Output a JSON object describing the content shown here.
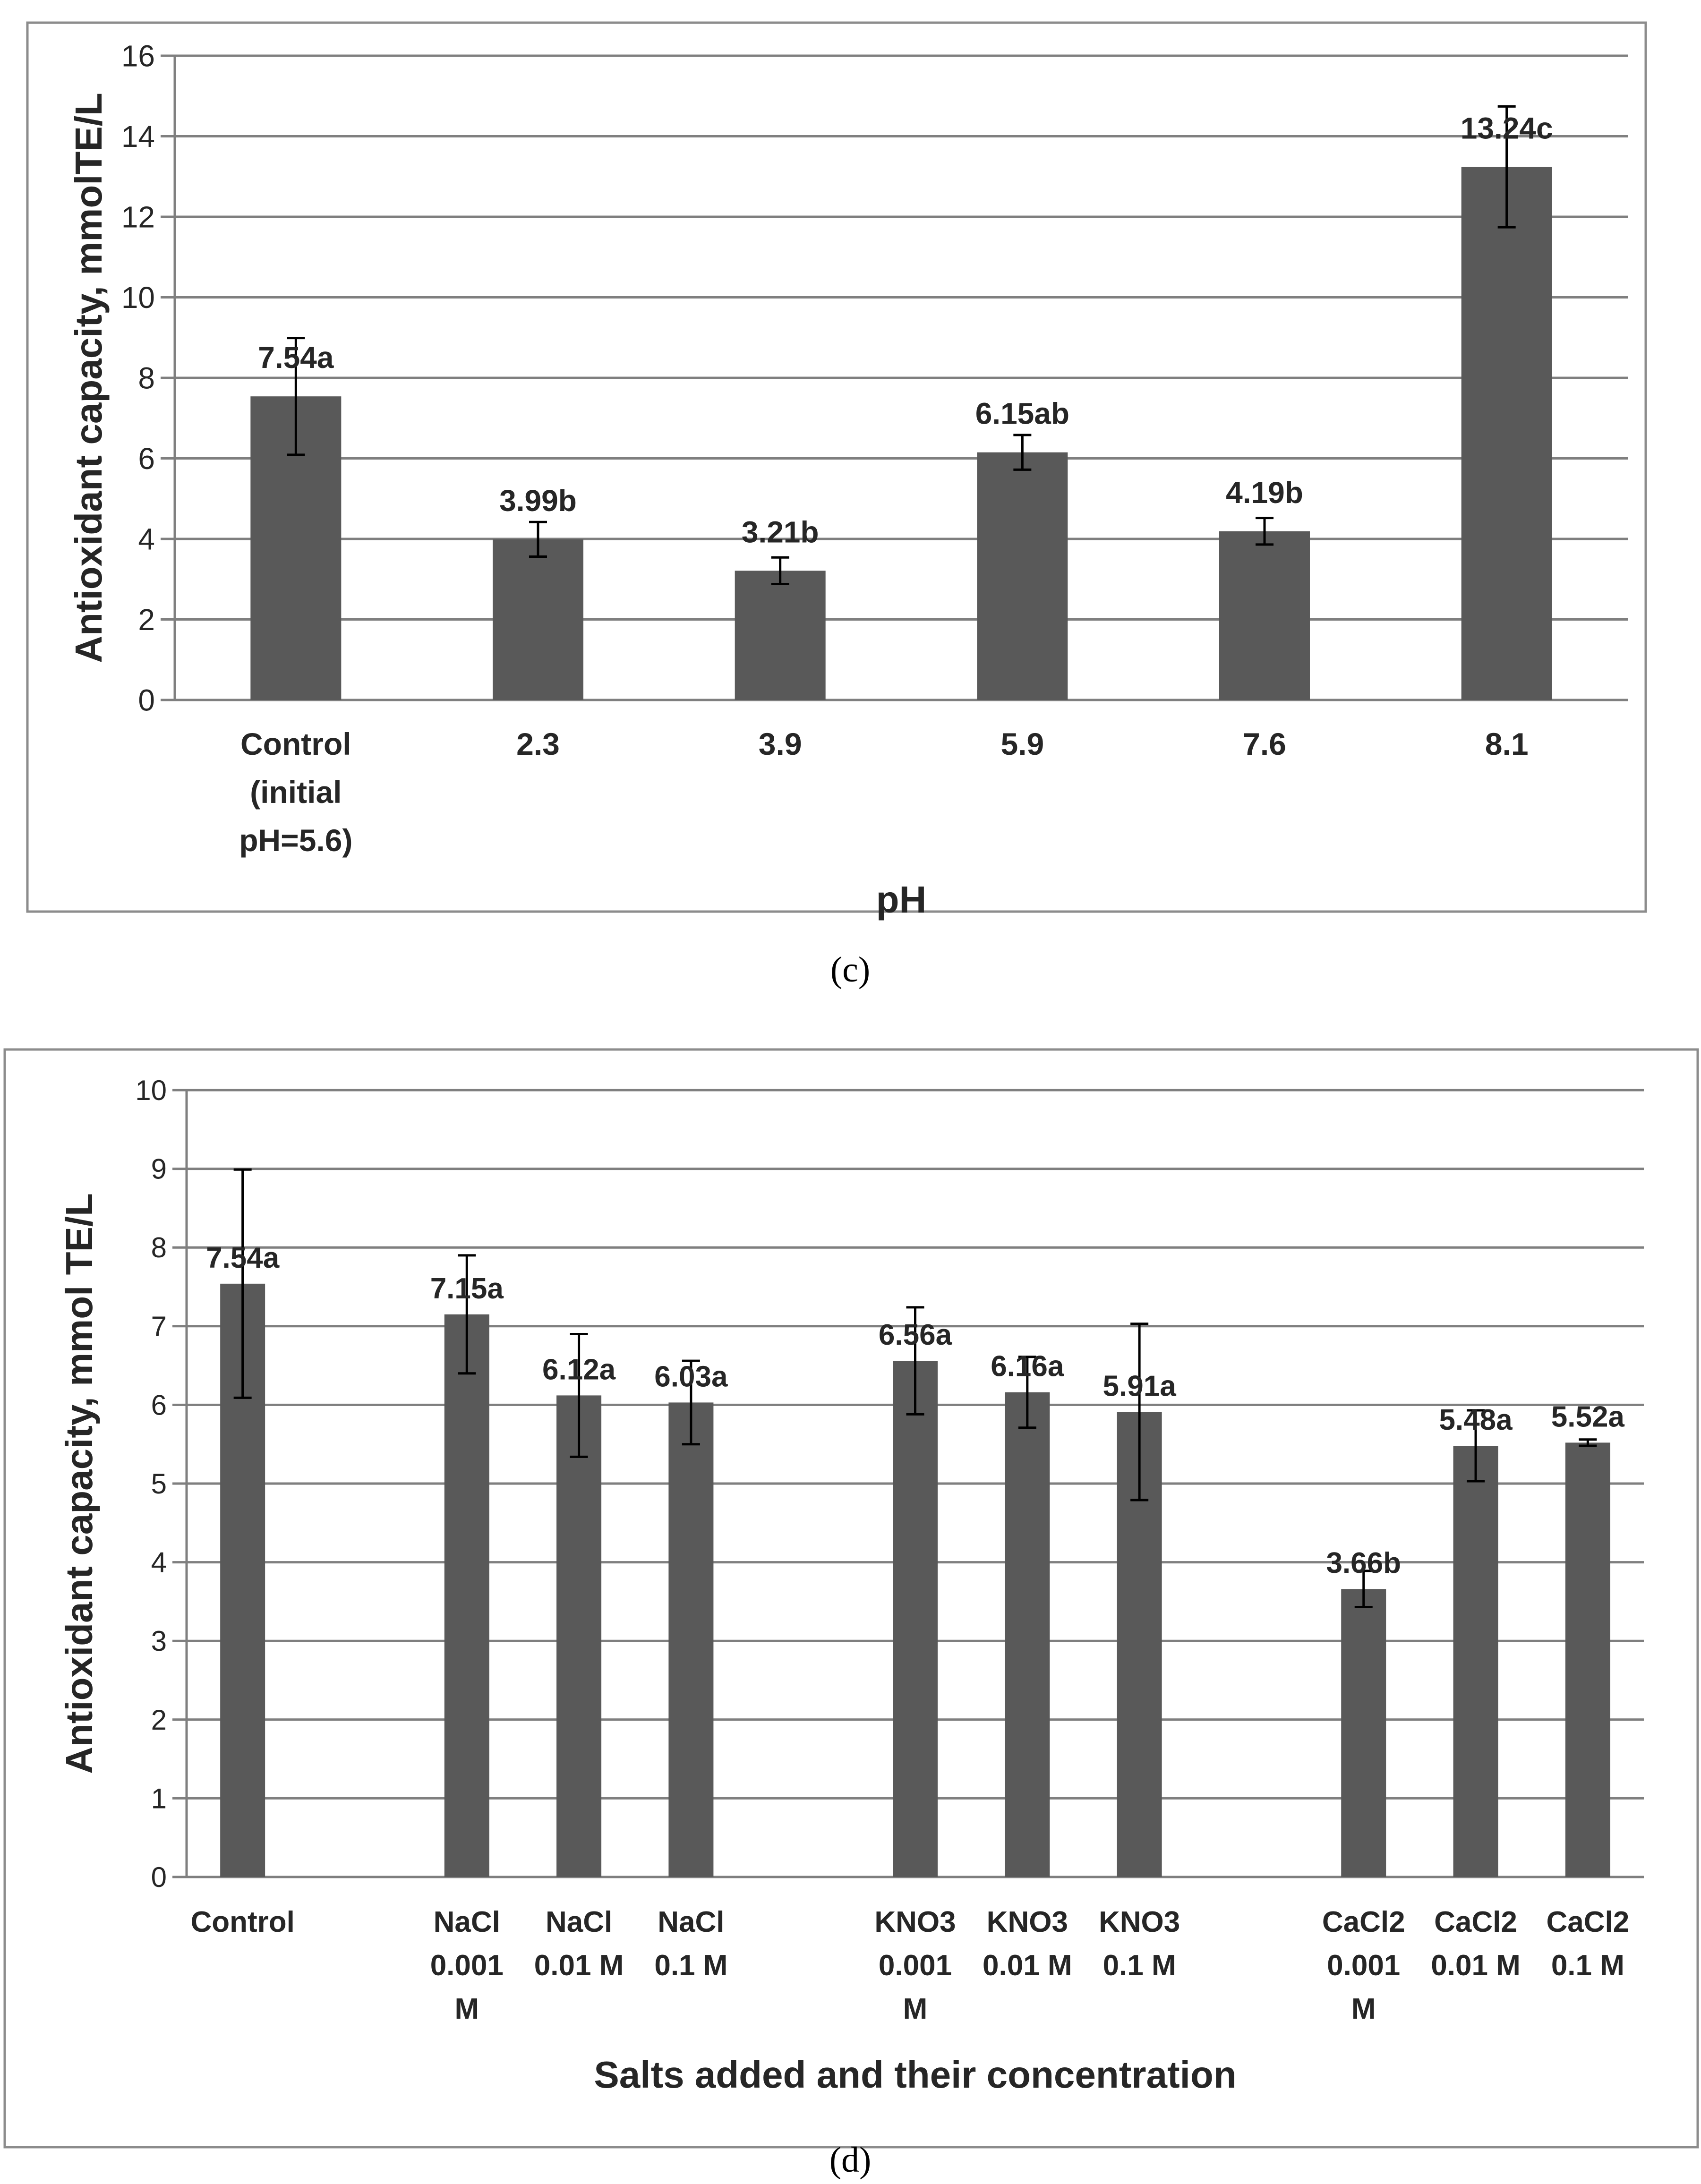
{
  "colors": {
    "bar": "#595959",
    "grid": "#7f7f7f",
    "axis": "#7f7f7f",
    "text": "#262626",
    "frame": "#8c8c8c",
    "errorbar": "#000000"
  },
  "chart_data": [
    {
      "type": "bar",
      "panel": "(c)",
      "panel_letter": "c",
      "title": "",
      "xlabel": "pH",
      "ylabel": "Antioxidant capacity, mmolTE/L",
      "ylim": [
        0,
        16
      ],
      "ytick_step": 2,
      "yticks": [
        "0",
        "2",
        "4",
        "6",
        "8",
        "10",
        "12",
        "14",
        "16"
      ],
      "grid": true,
      "legend": "none",
      "categories": [
        "Control (initial pH=5.6)",
        "2.3",
        "3.9",
        "5.9",
        "7.6",
        "8.1"
      ],
      "category_lines": [
        [
          "Control",
          "(initial",
          "pH=5.6)"
        ],
        [
          "2.3"
        ],
        [
          "3.9"
        ],
        [
          "5.9"
        ],
        [
          "7.6"
        ],
        [
          "8.1"
        ]
      ],
      "values": [
        7.54,
        3.99,
        3.21,
        6.15,
        4.19,
        13.24
      ],
      "error": [
        1.45,
        0.43,
        0.33,
        0.43,
        0.33,
        1.5
      ],
      "data_labels": [
        "7.54a",
        "3.99b",
        "3.21b",
        "6.15ab",
        "4.19b",
        "13.24c"
      ]
    },
    {
      "type": "bar",
      "panel": "(d)",
      "panel_letter": "d",
      "title": "",
      "xlabel": "Salts added and their concentration",
      "ylabel": "Antioxidant capacity, mmol TE/L",
      "ylim": [
        0,
        10
      ],
      "ytick_step": 1,
      "yticks": [
        "0",
        "1",
        "2",
        "3",
        "4",
        "5",
        "6",
        "7",
        "8",
        "9",
        "10"
      ],
      "grid": true,
      "legend": "none",
      "categories": [
        "Control",
        "",
        "NaCl 0.001 M",
        "NaCl 0.01 M",
        "NaCl 0.1 M",
        "",
        "KNO3 0.001 M",
        "KNO3 0.01 M",
        "KNO3 0.1 M",
        "",
        "CaCl2 0.001 M",
        "CaCl2 0.01 M",
        "CaCl2 0.1 M"
      ],
      "category_lines": [
        [
          "Control"
        ],
        [],
        [
          "NaCl",
          "0.001",
          "M"
        ],
        [
          "NaCl",
          "0.01 M"
        ],
        [
          "NaCl",
          "0.1 M"
        ],
        [],
        [
          "KNO3",
          "0.001",
          "M"
        ],
        [
          "KNO3",
          "0.01 M"
        ],
        [
          "KNO3",
          "0.1 M"
        ],
        [],
        [
          "CaCl2",
          "0.001",
          "M"
        ],
        [
          "CaCl2",
          "0.01 M"
        ],
        [
          "CaCl2",
          "0.1 M"
        ]
      ],
      "values": [
        7.54,
        null,
        7.15,
        6.12,
        6.03,
        null,
        6.56,
        6.16,
        5.91,
        null,
        3.66,
        5.48,
        5.52
      ],
      "error": [
        1.45,
        null,
        0.75,
        0.78,
        0.53,
        null,
        0.68,
        0.45,
        1.12,
        null,
        0.23,
        0.45,
        0.04
      ],
      "data_labels": [
        "7.54a",
        "",
        "7.15a",
        "6.12a",
        "6.03a",
        "",
        "6.56a",
        "6.16a",
        "5.91a",
        "",
        "3.66b",
        "5.48a",
        "5.52a"
      ]
    }
  ]
}
